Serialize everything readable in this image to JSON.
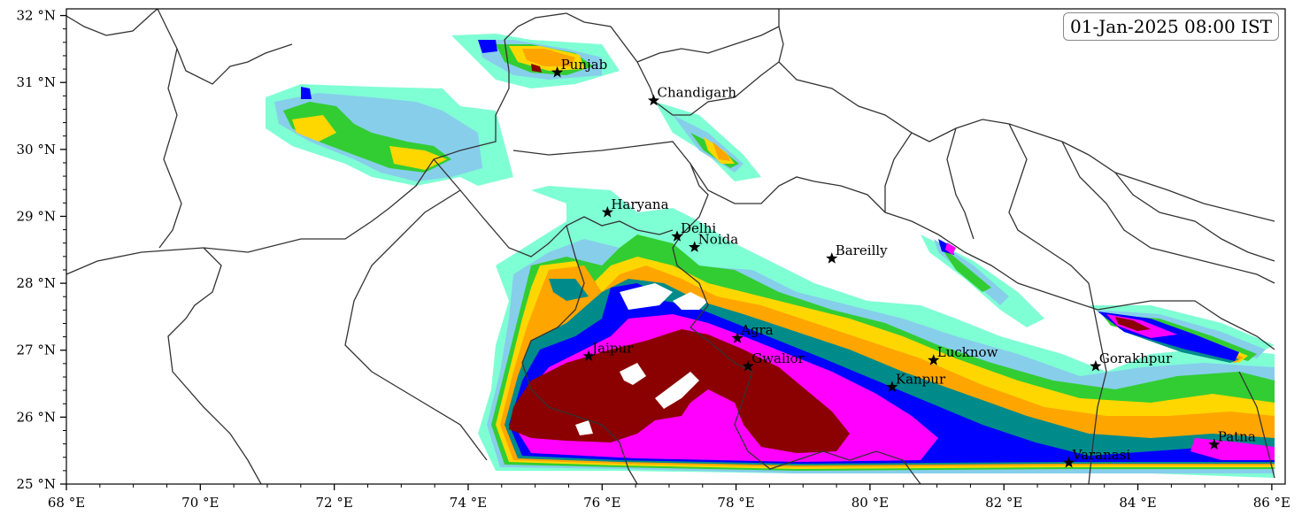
{
  "timestamp": "01-Jan-2025 08:00 IST",
  "x_ticks": [
    {
      "lon": 68,
      "label": "68 °E"
    },
    {
      "lon": 70,
      "label": "70 °E"
    },
    {
      "lon": 72,
      "label": "72 °E"
    },
    {
      "lon": 74,
      "label": "74 °E"
    },
    {
      "lon": 76,
      "label": "76 °E"
    },
    {
      "lon": 78,
      "label": "78 °E"
    },
    {
      "lon": 80,
      "label": "80 °E"
    },
    {
      "lon": 82,
      "label": "82 °E"
    },
    {
      "lon": 84,
      "label": "84 °E"
    },
    {
      "lon": 86,
      "label": "86 °E"
    }
  ],
  "y_ticks": [
    {
      "lat": 25,
      "label": "25 °N"
    },
    {
      "lat": 26,
      "label": "26 °N"
    },
    {
      "lat": 27,
      "label": "27 °N"
    },
    {
      "lat": 28,
      "label": "28 °N"
    },
    {
      "lat": 29,
      "label": "29 °N"
    },
    {
      "lat": 30,
      "label": "30 °N"
    },
    {
      "lat": 31,
      "label": "31 °N"
    },
    {
      "lat": 32,
      "label": "32 °N"
    }
  ],
  "extent": {
    "lon_min": 68,
    "lon_max": 86.2,
    "lat_min": 25,
    "lat_max": 32.1
  },
  "cities": [
    {
      "name": "Punjab",
      "lon": 75.33,
      "lat": 31.15
    },
    {
      "name": "Chandigarh",
      "lon": 76.77,
      "lat": 30.73
    },
    {
      "name": "Haryana",
      "lon": 76.08,
      "lat": 29.06
    },
    {
      "name": "Delhi",
      "lon": 77.12,
      "lat": 28.7
    },
    {
      "name": "Noida",
      "lon": 77.38,
      "lat": 28.54
    },
    {
      "name": "Bareilly",
      "lon": 79.43,
      "lat": 28.37
    },
    {
      "name": "Agra",
      "lon": 78.02,
      "lat": 27.18
    },
    {
      "name": "Jaipur",
      "lon": 75.8,
      "lat": 26.91
    },
    {
      "name": "Gwalior",
      "lon": 78.18,
      "lat": 26.76
    },
    {
      "name": "Lucknow",
      "lon": 80.95,
      "lat": 26.85
    },
    {
      "name": "Kanpur",
      "lon": 80.33,
      "lat": 26.45
    },
    {
      "name": "Gorakhpur",
      "lon": 83.37,
      "lat": 26.76
    },
    {
      "name": "Varanasi",
      "lon": 82.97,
      "lat": 25.32
    },
    {
      "name": "Patna",
      "lon": 85.14,
      "lat": 25.59
    }
  ],
  "colors": {
    "level1": "#7fffd4",
    "level2": "#87ceeb",
    "level3": "#32cd32",
    "level4": "#ffd700",
    "level5": "#ffa500",
    "level6": "#008b8b",
    "level7": "#0000ff",
    "level8": "#ff00ff",
    "level9": "#8b0000",
    "border": "#333333"
  }
}
